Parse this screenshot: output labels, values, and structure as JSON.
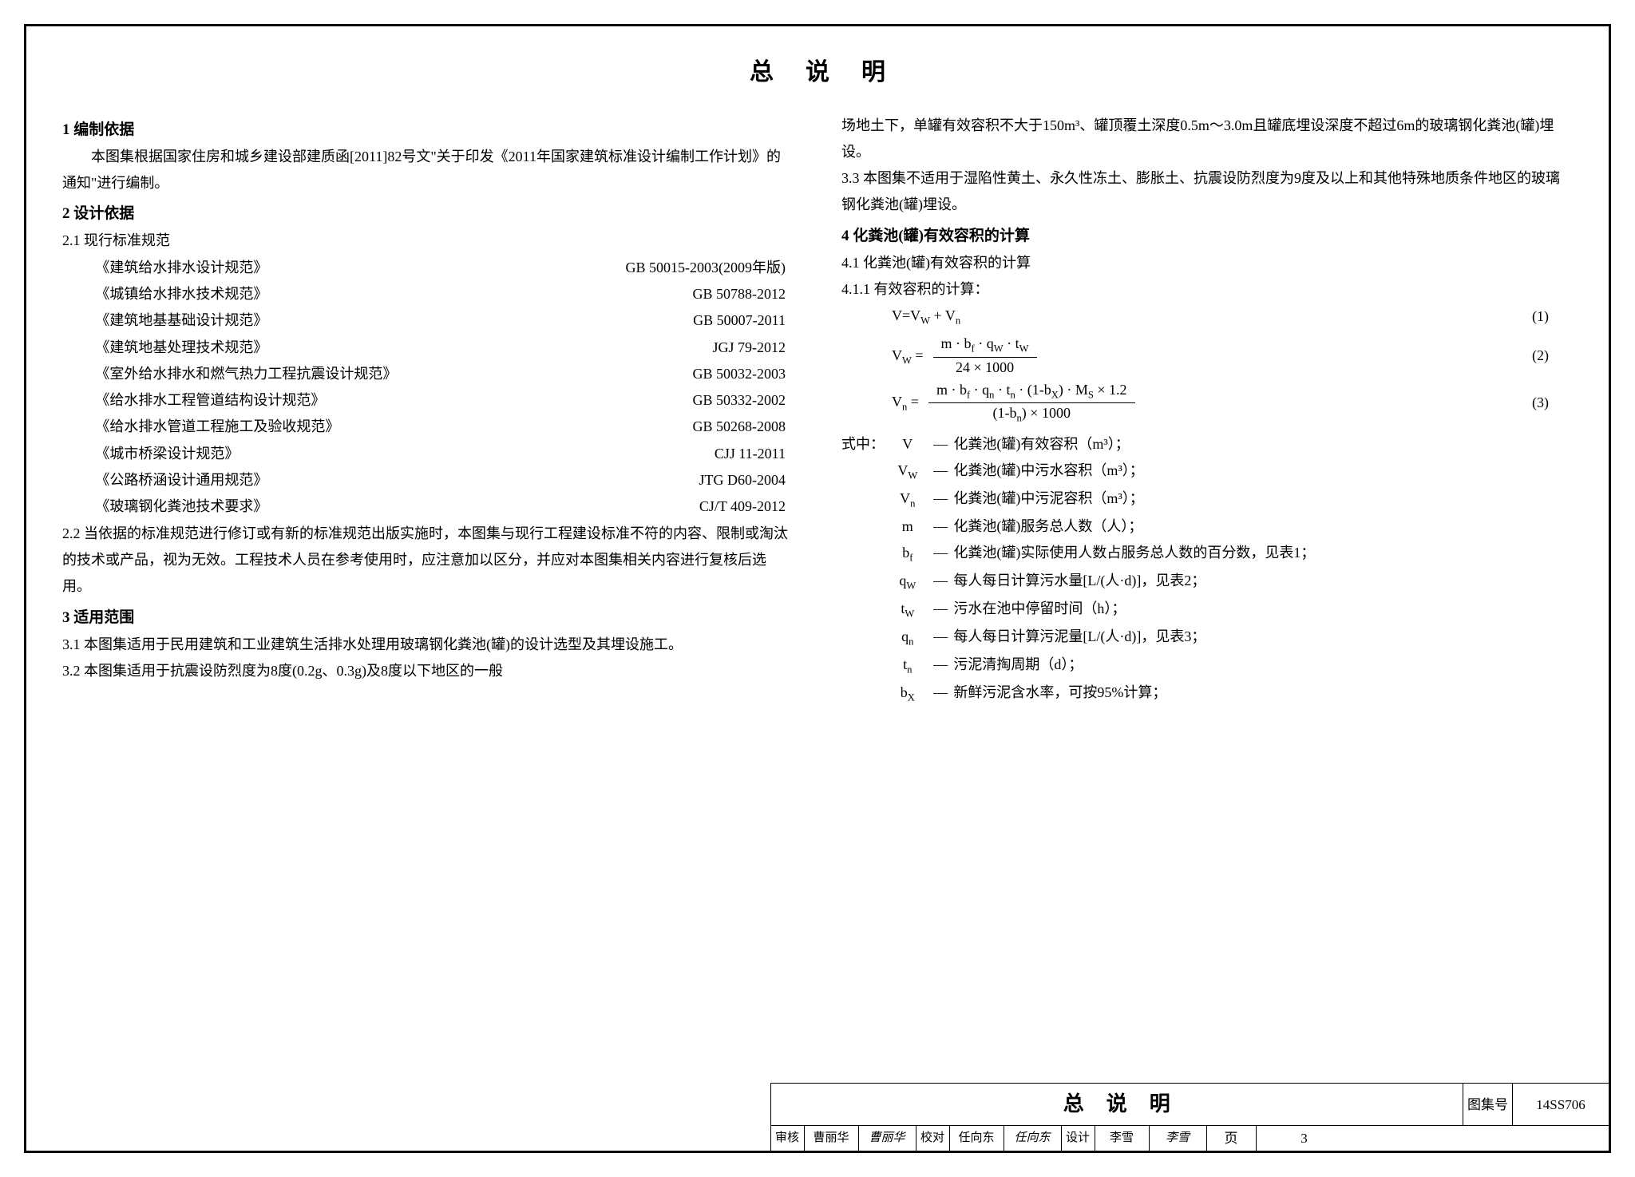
{
  "title": "总说明",
  "left": {
    "s1_h": "1 编制依据",
    "s1_p": "本图集根据国家住房和城乡建设部建质函[2011]82号文\"关于印发《2011年国家建筑标准设计编制工作计划》的通知\"进行编制。",
    "s2_h": "2 设计依据",
    "s2_1": "2.1 现行标准规范",
    "standards": [
      {
        "name": "《建筑给水排水设计规范》",
        "code": "GB 50015-2003(2009年版)"
      },
      {
        "name": "《城镇给水排水技术规范》",
        "code": "GB 50788-2012"
      },
      {
        "name": "《建筑地基基础设计规范》",
        "code": "GB 50007-2011"
      },
      {
        "name": "《建筑地基处理技术规范》",
        "code": "JGJ 79-2012"
      },
      {
        "name": "《室外给水排水和燃气热力工程抗震设计规范》",
        "code": "GB 50032-2003"
      },
      {
        "name": "《给水排水工程管道结构设计规范》",
        "code": "GB 50332-2002"
      },
      {
        "name": "《给水排水管道工程施工及验收规范》",
        "code": "GB 50268-2008"
      },
      {
        "name": "《城市桥梁设计规范》",
        "code": "CJJ 11-2011"
      },
      {
        "name": "《公路桥涵设计通用规范》",
        "code": "JTG D60-2004"
      },
      {
        "name": "《玻璃钢化粪池技术要求》",
        "code": "CJ/T 409-2012"
      }
    ],
    "s2_2": "2.2 当依据的标准规范进行修订或有新的标准规范出版实施时，本图集与现行工程建设标准不符的内容、限制或淘汰的技术或产品，视为无效。工程技术人员在参考使用时，应注意加以区分，并应对本图集相关内容进行复核后选用。",
    "s3_h": "3 适用范围",
    "s3_1": "3.1 本图集适用于民用建筑和工业建筑生活排水处理用玻璃钢化粪池(罐)的设计选型及其埋设施工。",
    "s3_2": "3.2 本图集适用于抗震设防烈度为8度(0.2g、0.3g)及8度以下地区的一般"
  },
  "right": {
    "s3_2_cont": "场地土下，单罐有效容积不大于150m³、罐顶覆土深度0.5m～3.0m且罐底埋设深度不超过6m的玻璃钢化粪池(罐)埋设。",
    "s3_3": "3.3 本图集不适用于湿陷性黄土、永久性冻土、膨胀土、抗震设防烈度为9度及以上和其他特殊地质条件地区的玻璃钢化粪池(罐)埋设。",
    "s4_h": "4 化粪池(罐)有效容积的计算",
    "s4_1": "4.1 化粪池(罐)有效容积的计算",
    "s4_1_1": "4.1.1 有效容积的计算：",
    "eq1": {
      "lhs": "V=V",
      "sub1": "W",
      "plus": " + V",
      "sub2": "n",
      "num": "(1)"
    },
    "eq2": {
      "lhs": "V",
      "lhs_sub": "W",
      "eq": " = ",
      "num": "m · b",
      "num_sub1": "f",
      "num2": " · q",
      "num_sub2": "W",
      "num3": " · t",
      "num_sub3": "W",
      "den": "24 × 1000",
      "eqnum": "(2)"
    },
    "eq3": {
      "lhs": "V",
      "lhs_sub": "n",
      "eq": " = ",
      "num": "m · b",
      "n1": "f",
      "num2": " · q",
      "n2": "n",
      "num3": " · t",
      "n3": "n",
      "num4": " · (1-b",
      "n4": "X",
      "num5": ") · M",
      "n5": "S",
      "num6": " × 1.2",
      "den_a": "(1-b",
      "den_s": "n",
      "den_b": ")  × 1000",
      "eqnum": "(3)"
    },
    "where_lead": "式中：",
    "defs": [
      {
        "sym": "V",
        "sub": "",
        "desc": "化粪池(罐)有效容积（m³）；"
      },
      {
        "sym": "V",
        "sub": "W",
        "desc": "化粪池(罐)中污水容积（m³）；"
      },
      {
        "sym": "V",
        "sub": "n",
        "desc": "化粪池(罐)中污泥容积（m³）；"
      },
      {
        "sym": "m",
        "sub": "",
        "desc": "化粪池(罐)服务总人数（人）；"
      },
      {
        "sym": "b",
        "sub": "f",
        "desc": "化粪池(罐)实际使用人数占服务总人数的百分数，见表1；"
      },
      {
        "sym": "q",
        "sub": "W",
        "desc": "每人每日计算污水量[L/(人·d)]，见表2；"
      },
      {
        "sym": "t",
        "sub": "W",
        "desc": "污水在池中停留时间（h）；"
      },
      {
        "sym": "q",
        "sub": "n",
        "desc": "每人每日计算污泥量[L/(人·d)]，见表3；"
      },
      {
        "sym": "t",
        "sub": "n",
        "desc": "污泥清掏周期（d）；"
      },
      {
        "sym": "b",
        "sub": "X",
        "desc": "新鲜污泥含水率，可按95%计算；"
      }
    ]
  },
  "titleblock": {
    "title": "总说明",
    "tjh_label": "图集号",
    "tjh_value": "14SS706",
    "review_l": "审核",
    "review_n": "曹丽华",
    "review_s": "曹丽华",
    "check_l": "校对",
    "check_n": "任向东",
    "check_s": "任向东",
    "design_l": "设计",
    "design_n": "李雪",
    "design_s": "李雪",
    "page_l": "页",
    "page_v": "3"
  }
}
